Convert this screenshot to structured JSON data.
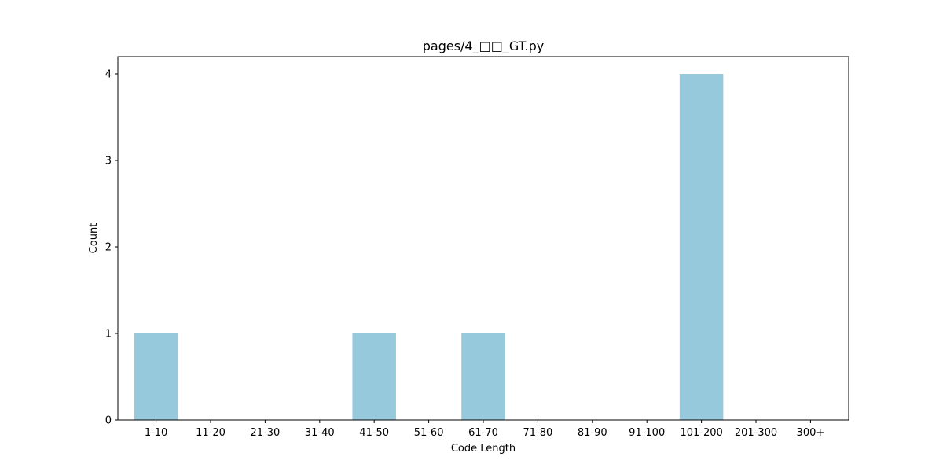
{
  "chart_data": {
    "type": "bar",
    "title": "pages/4_□□_GT.py",
    "xlabel": "Code Length",
    "ylabel": "Count",
    "categories": [
      "1-10",
      "11-20",
      "21-30",
      "31-40",
      "41-50",
      "51-60",
      "61-70",
      "71-80",
      "81-90",
      "91-100",
      "101-200",
      "201-300",
      "300+"
    ],
    "values": [
      1,
      0,
      0,
      0,
      1,
      0,
      1,
      0,
      0,
      0,
      4,
      0,
      0
    ],
    "ylim": [
      0,
      4.2
    ],
    "yticks": [
      0,
      1,
      2,
      3,
      4
    ],
    "grid": false,
    "bar_color": "#96c9dc",
    "axis_color": "#000000"
  }
}
